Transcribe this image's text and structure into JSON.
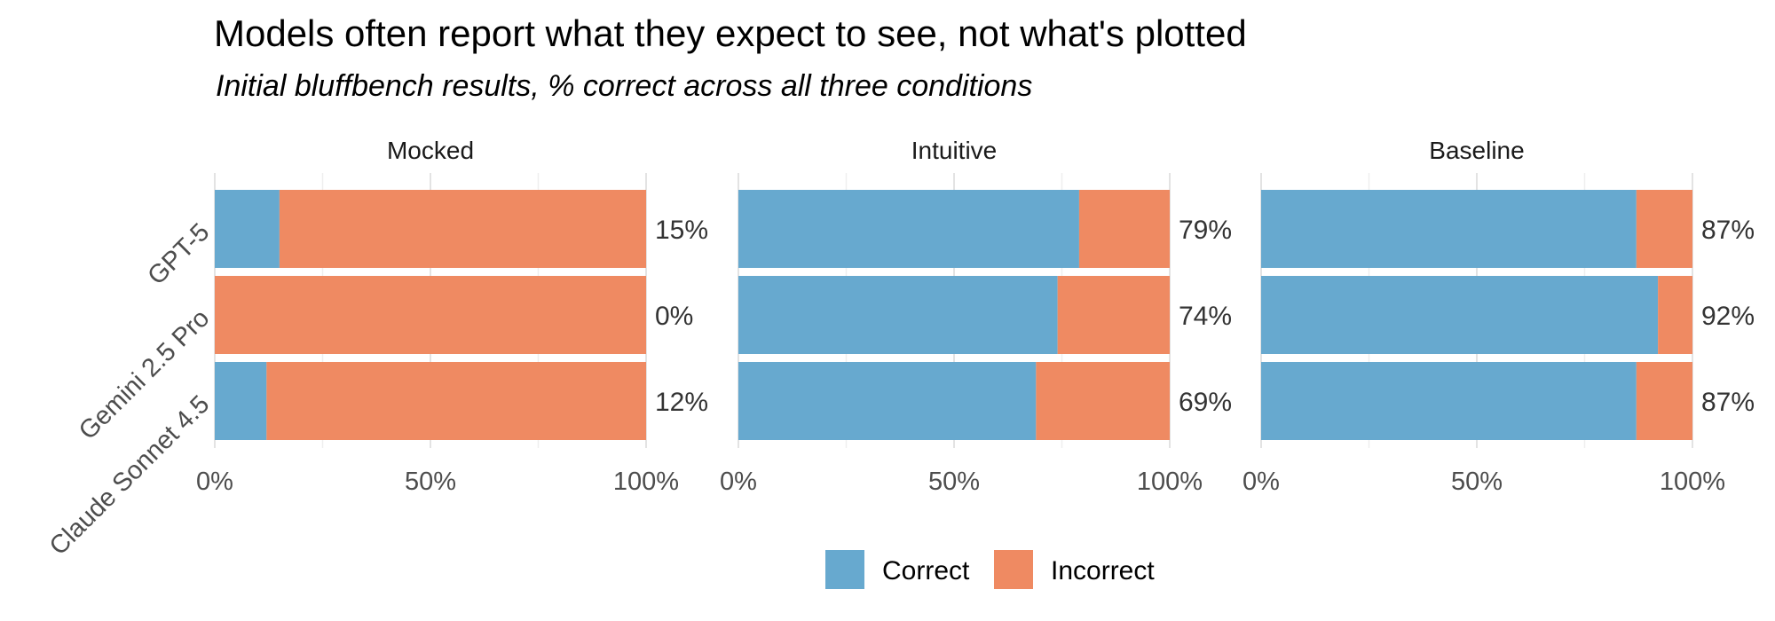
{
  "chart_data": {
    "type": "bar",
    "orientation": "horizontal",
    "stacked": true,
    "title": "Models often report what they expect to see, not what's plotted",
    "subtitle": "Initial bluffbench results, % correct across all three conditions",
    "categories": [
      "GPT-5",
      "Gemini 2.5 Pro",
      "Claude Sonnet 4.5"
    ],
    "x_ticks": [
      "0%",
      "50%",
      "100%"
    ],
    "xlim": [
      0,
      100
    ],
    "grid": true,
    "legend": {
      "placement": "bottom",
      "items": [
        {
          "name": "Correct",
          "color": "#67a9cf"
        },
        {
          "name": "Incorrect",
          "color": "#ef8a62"
        }
      ]
    },
    "facets": [
      {
        "name": "Mocked",
        "correct": [
          15,
          0,
          12
        ],
        "labels": [
          "15%",
          "0%",
          "12%"
        ]
      },
      {
        "name": "Intuitive",
        "correct": [
          79,
          74,
          69
        ],
        "labels": [
          "79%",
          "74%",
          "69%"
        ]
      },
      {
        "name": "Baseline",
        "correct": [
          87,
          92,
          87
        ],
        "labels": [
          "87%",
          "92%",
          "87%"
        ]
      }
    ]
  }
}
